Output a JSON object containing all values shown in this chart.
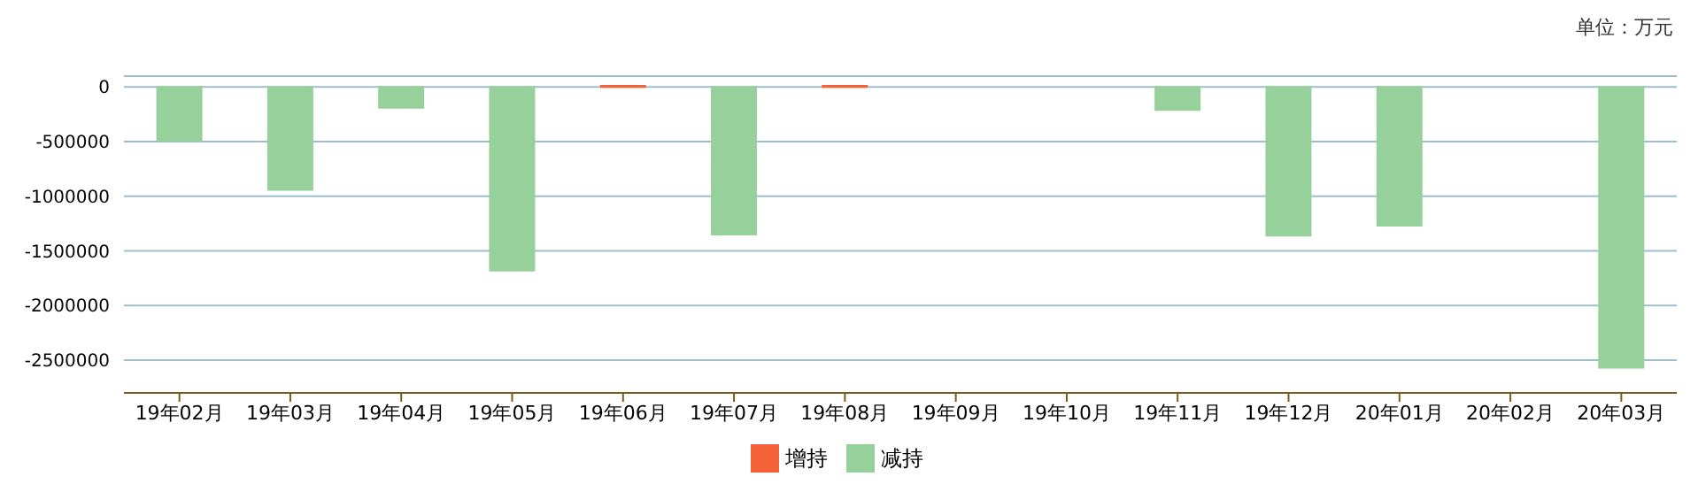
{
  "chart_data": {
    "type": "bar",
    "annotations": [
      "单位：万元"
    ],
    "categories": [
      "19年02月",
      "19年03月",
      "19年04月",
      "19年05月",
      "19年06月",
      "19年07月",
      "19年08月",
      "19年09月",
      "19年10月",
      "19年11月",
      "19年12月",
      "20年01月",
      "20年02月",
      "20年03月"
    ],
    "series": [
      {
        "name": "增持",
        "color": "#f4623a",
        "values": [
          null,
          null,
          null,
          null,
          10000,
          null,
          10000,
          null,
          null,
          null,
          null,
          null,
          null,
          null
        ]
      },
      {
        "name": "减持",
        "color": "#96d09b",
        "values": [
          -490000,
          -940000,
          -190000,
          -1680000,
          null,
          -1350000,
          null,
          null,
          null,
          -210000,
          -1360000,
          -1270000,
          null,
          -2570000
        ]
      }
    ],
    "stacked": true,
    "ylim": [
      -2800000,
      100000
    ],
    "yticks": [
      0,
      -500000,
      -1000000,
      -1500000,
      -2000000,
      -2500000
    ],
    "grid": "y",
    "legend": "bottom"
  }
}
